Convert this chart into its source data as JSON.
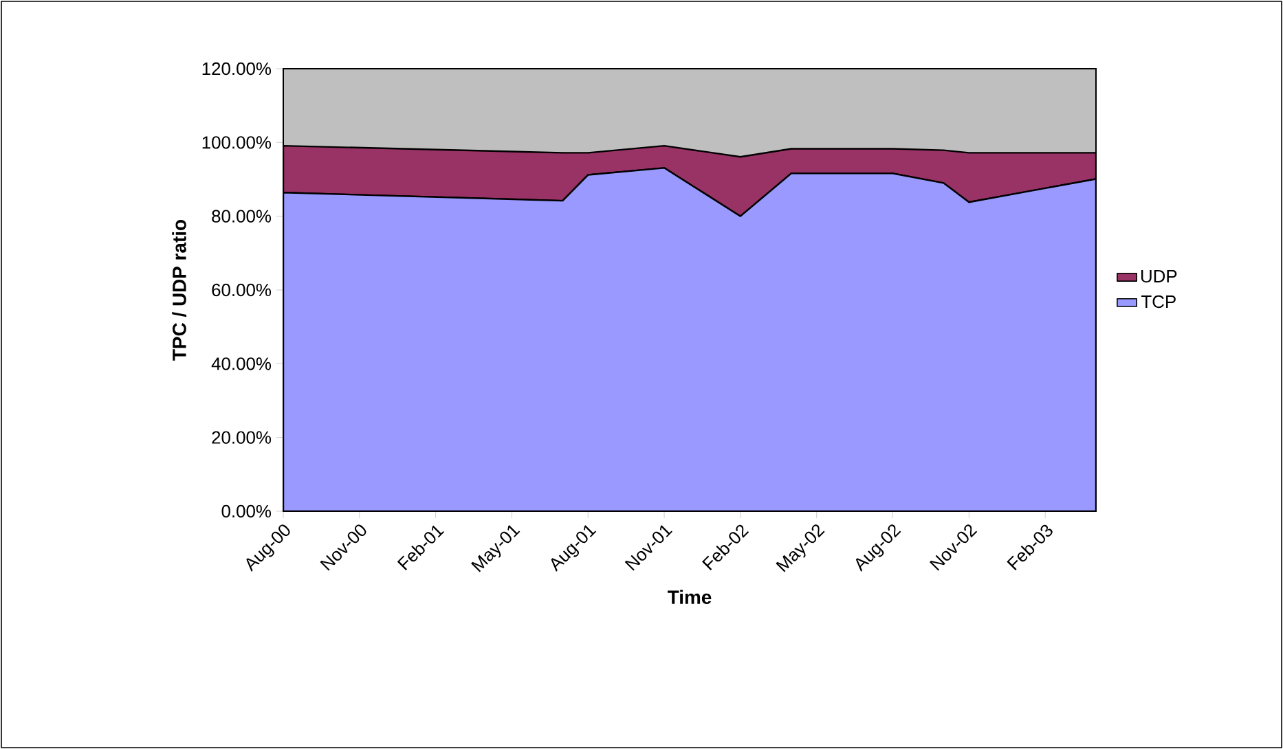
{
  "chart_data": {
    "type": "area",
    "stacked": true,
    "xlabel": "Time",
    "ylabel": "TPC / UDP ratio",
    "x": [
      "2000-08",
      "2001-07",
      "2001-08",
      "2001-11",
      "2002-02",
      "2002-04",
      "2002-08",
      "2002-10",
      "2002-11",
      "2003-04"
    ],
    "series": [
      {
        "name": "TCP",
        "color": "#9999ff",
        "values": [
          86.4,
          84.2,
          91.2,
          93.1,
          80.0,
          91.6,
          91.6,
          89.0,
          83.8,
          90.1
        ]
      },
      {
        "name": "UDP",
        "color": "#993366",
        "values": [
          12.7,
          13.0,
          6.0,
          6.0,
          16.1,
          6.7,
          6.7,
          8.9,
          13.4,
          7.1
        ]
      }
    ],
    "xlim": [
      "2000-08",
      "2003-04"
    ],
    "xticks": [
      {
        "value": "2000-08",
        "label": "Aug-00"
      },
      {
        "value": "2000-11",
        "label": "Nov-00"
      },
      {
        "value": "2001-02",
        "label": "Feb-01"
      },
      {
        "value": "2001-05",
        "label": "May-01"
      },
      {
        "value": "2001-08",
        "label": "Aug-01"
      },
      {
        "value": "2001-11",
        "label": "Nov-01"
      },
      {
        "value": "2002-02",
        "label": "Feb-02"
      },
      {
        "value": "2002-05",
        "label": "May-02"
      },
      {
        "value": "2002-08",
        "label": "Aug-02"
      },
      {
        "value": "2002-11",
        "label": "Nov-02"
      },
      {
        "value": "2003-02",
        "label": "Feb-03"
      }
    ],
    "ylim": [
      0,
      120
    ],
    "yticks": [
      {
        "value": 0,
        "label": "0.00%"
      },
      {
        "value": 20,
        "label": "20.00%"
      },
      {
        "value": 40,
        "label": "40.00%"
      },
      {
        "value": 60,
        "label": "60.00%"
      },
      {
        "value": 80,
        "label": "80.00%"
      },
      {
        "value": 100,
        "label": "100.00%"
      },
      {
        "value": 120,
        "label": "120.00%"
      }
    ],
    "legend": "right"
  }
}
